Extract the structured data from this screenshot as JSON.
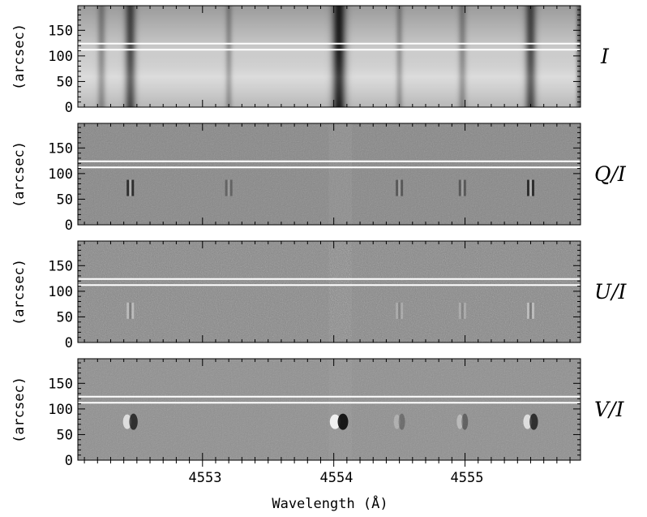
{
  "figure": {
    "xlabel": "Wavelength (Å)",
    "xticks": [
      "4553",
      "4554",
      "4555"
    ]
  },
  "chart_data": [
    {
      "type": "heatmap",
      "panel_label": "I",
      "ylabel": "(arcsec)",
      "yticks": [
        "0",
        "50",
        "100",
        "150"
      ],
      "ylim": [
        0,
        198
      ],
      "xlim": [
        4552.05,
        4555.88
      ],
      "slit_rows": [
        112,
        124
      ],
      "grayscale": "dark = absorption",
      "lines": [
        {
          "center": 4552.23,
          "depth": 0.35,
          "width": 0.03
        },
        {
          "center": 4552.45,
          "depth": 0.7,
          "width": 0.04
        },
        {
          "center": 4553.2,
          "depth": 0.3,
          "width": 0.025
        },
        {
          "center": 4554.04,
          "depth": 0.95,
          "width": 0.05
        },
        {
          "center": 4554.5,
          "depth": 0.3,
          "width": 0.025
        },
        {
          "center": 4554.98,
          "depth": 0.35,
          "width": 0.03
        },
        {
          "center": 4555.5,
          "depth": 0.7,
          "width": 0.04
        },
        {
          "center": 4555.87,
          "depth": 0.5,
          "width": 0.02
        }
      ]
    },
    {
      "type": "heatmap",
      "panel_label": "Q/I",
      "ylabel": "(arcsec)",
      "yticks": [
        "0",
        "50",
        "100",
        "150"
      ],
      "ylim": [
        0,
        198
      ],
      "slit_rows": [
        112,
        124
      ],
      "features_at_y": 72,
      "features": [
        {
          "center": 4552.45,
          "amp": -0.9,
          "width": 0.03
        },
        {
          "center": 4553.2,
          "amp": -0.4,
          "width": 0.02
        },
        {
          "center": 4554.5,
          "amp": -0.5,
          "width": 0.02
        },
        {
          "center": 4554.98,
          "amp": -0.5,
          "width": 0.02
        },
        {
          "center": 4555.5,
          "amp": -0.9,
          "width": 0.03
        }
      ]
    },
    {
      "type": "heatmap",
      "panel_label": "U/I",
      "ylabel": "(arcsec)",
      "yticks": [
        "0",
        "50",
        "100",
        "150"
      ],
      "ylim": [
        0,
        198
      ],
      "slit_rows": [
        112,
        124
      ],
      "features_at_y": 62,
      "features": [
        {
          "center": 4552.45,
          "amp": 0.5,
          "width": 0.03
        },
        {
          "center": 4554.5,
          "amp": 0.3,
          "width": 0.02
        },
        {
          "center": 4554.98,
          "amp": 0.3,
          "width": 0.02
        },
        {
          "center": 4555.5,
          "amp": 0.5,
          "width": 0.03
        }
      ]
    },
    {
      "type": "heatmap",
      "panel_label": "V/I",
      "ylabel": "(arcsec)",
      "yticks": [
        "0",
        "50",
        "100",
        "150"
      ],
      "ylim": [
        0,
        198
      ],
      "slit_rows": [
        112,
        124
      ],
      "features_at_y": 75,
      "features": [
        {
          "center": 4552.45,
          "amp": 0.8,
          "width": 0.04
        },
        {
          "center": 4554.04,
          "amp": 1.0,
          "width": 0.05
        },
        {
          "center": 4554.5,
          "amp": 0.3,
          "width": 0.02
        },
        {
          "center": 4554.98,
          "amp": 0.4,
          "width": 0.03
        },
        {
          "center": 4555.5,
          "amp": 0.8,
          "width": 0.04
        }
      ]
    }
  ],
  "colors": {
    "frame": "#000000",
    "slit_marker": "#ffffff",
    "background": "#ffffff"
  }
}
